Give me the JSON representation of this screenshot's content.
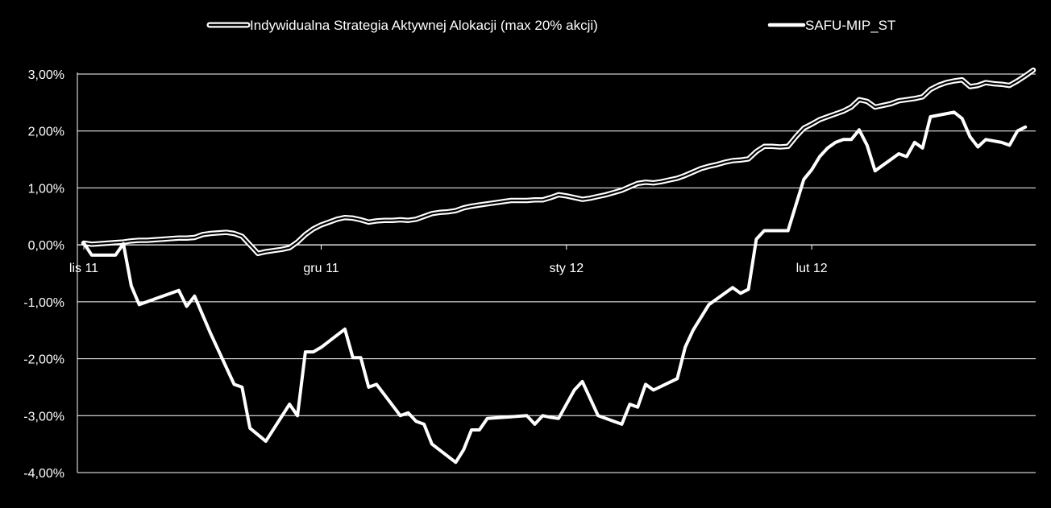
{
  "chart_data": {
    "type": "line",
    "legend_position": "top",
    "grid": true,
    "ylim": [
      -4.0,
      3.0
    ],
    "y_ticks": [
      3.0,
      2.0,
      1.0,
      0.0,
      -1.0,
      -2.0,
      -3.0,
      -4.0
    ],
    "y_tick_labels": [
      "3,00%",
      "2,00%",
      "1,00%",
      "0,00%",
      "-1,00%",
      "-2,00%",
      "-3,00%",
      "-4,00%"
    ],
    "x_range_days": [
      0,
      120
    ],
    "x_ticks": [
      {
        "label": "lis 11",
        "day": 0
      },
      {
        "label": "gru 11",
        "day": 30
      },
      {
        "label": "sty 12",
        "day": 61
      },
      {
        "label": "lut 12",
        "day": 92
      }
    ],
    "colors": {
      "background": "#000000",
      "lines": "#ffffff",
      "grid": "#ffffff"
    },
    "series": [
      {
        "name": "Indywidualna Strategia Aktywnej Alokacji (max 20% akcji)",
        "style": "double",
        "points": [
          [
            0,
            0.03
          ],
          [
            1,
            0.01
          ],
          [
            2,
            0.02
          ],
          [
            3,
            0.03
          ],
          [
            4,
            0.04
          ],
          [
            5,
            0.05
          ],
          [
            6,
            0.07
          ],
          [
            7,
            0.08
          ],
          [
            8,
            0.08
          ],
          [
            9,
            0.09
          ],
          [
            10,
            0.1
          ],
          [
            11,
            0.11
          ],
          [
            12,
            0.12
          ],
          [
            13,
            0.12
          ],
          [
            14,
            0.13
          ],
          [
            15,
            0.18
          ],
          [
            16,
            0.2
          ],
          [
            17,
            0.21
          ],
          [
            18,
            0.22
          ],
          [
            19,
            0.2
          ],
          [
            20,
            0.15
          ],
          [
            21,
            0.0
          ],
          [
            22,
            -0.15
          ],
          [
            23,
            -0.12
          ],
          [
            24,
            -0.1
          ],
          [
            25,
            -0.08
          ],
          [
            26,
            -0.05
          ],
          [
            27,
            0.05
          ],
          [
            28,
            0.18
          ],
          [
            29,
            0.28
          ],
          [
            30,
            0.35
          ],
          [
            31,
            0.4
          ],
          [
            32,
            0.45
          ],
          [
            33,
            0.48
          ],
          [
            34,
            0.47
          ],
          [
            35,
            0.44
          ],
          [
            36,
            0.4
          ],
          [
            37,
            0.42
          ],
          [
            38,
            0.43
          ],
          [
            39,
            0.43
          ],
          [
            40,
            0.44
          ],
          [
            41,
            0.43
          ],
          [
            42,
            0.45
          ],
          [
            43,
            0.5
          ],
          [
            44,
            0.55
          ],
          [
            45,
            0.57
          ],
          [
            46,
            0.58
          ],
          [
            47,
            0.6
          ],
          [
            48,
            0.65
          ],
          [
            49,
            0.68
          ],
          [
            50,
            0.7
          ],
          [
            51,
            0.72
          ],
          [
            52,
            0.74
          ],
          [
            53,
            0.76
          ],
          [
            54,
            0.78
          ],
          [
            55,
            0.78
          ],
          [
            56,
            0.78
          ],
          [
            57,
            0.79
          ],
          [
            58,
            0.79
          ],
          [
            59,
            0.83
          ],
          [
            60,
            0.88
          ],
          [
            61,
            0.86
          ],
          [
            62,
            0.83
          ],
          [
            63,
            0.8
          ],
          [
            64,
            0.82
          ],
          [
            65,
            0.85
          ],
          [
            66,
            0.88
          ],
          [
            67,
            0.92
          ],
          [
            68,
            0.96
          ],
          [
            69,
            1.02
          ],
          [
            70,
            1.08
          ],
          [
            71,
            1.1
          ],
          [
            72,
            1.09
          ],
          [
            73,
            1.11
          ],
          [
            74,
            1.14
          ],
          [
            75,
            1.17
          ],
          [
            76,
            1.22
          ],
          [
            77,
            1.28
          ],
          [
            78,
            1.34
          ],
          [
            79,
            1.38
          ],
          [
            80,
            1.41
          ],
          [
            81,
            1.45
          ],
          [
            82,
            1.48
          ],
          [
            83,
            1.49
          ],
          [
            84,
            1.51
          ],
          [
            85,
            1.64
          ],
          [
            86,
            1.73
          ],
          [
            87,
            1.73
          ],
          [
            88,
            1.72
          ],
          [
            89,
            1.73
          ],
          [
            90,
            1.9
          ],
          [
            91,
            2.05
          ],
          [
            92,
            2.12
          ],
          [
            93,
            2.2
          ],
          [
            94,
            2.25
          ],
          [
            95,
            2.3
          ],
          [
            96,
            2.35
          ],
          [
            97,
            2.42
          ],
          [
            98,
            2.55
          ],
          [
            99,
            2.52
          ],
          [
            100,
            2.42
          ],
          [
            101,
            2.45
          ],
          [
            102,
            2.48
          ],
          [
            103,
            2.53
          ],
          [
            104,
            2.55
          ],
          [
            105,
            2.57
          ],
          [
            106,
            2.6
          ],
          [
            107,
            2.73
          ],
          [
            108,
            2.8
          ],
          [
            109,
            2.85
          ],
          [
            110,
            2.88
          ],
          [
            111,
            2.9
          ],
          [
            112,
            2.78
          ],
          [
            113,
            2.8
          ],
          [
            114,
            2.85
          ],
          [
            115,
            2.83
          ],
          [
            116,
            2.82
          ],
          [
            117,
            2.8
          ],
          [
            118,
            2.88
          ],
          [
            119,
            2.97
          ],
          [
            120,
            3.07
          ]
        ]
      },
      {
        "name": "SAFU-MIP_ST",
        "style": "solid",
        "points": [
          [
            0,
            0.03
          ],
          [
            1,
            -0.18
          ],
          [
            4,
            -0.18
          ],
          [
            5,
            0.02
          ],
          [
            6,
            -0.72
          ],
          [
            7,
            -1.05
          ],
          [
            9,
            -0.95
          ],
          [
            12,
            -0.8
          ],
          [
            13,
            -1.08
          ],
          [
            14,
            -0.9
          ],
          [
            16,
            -1.55
          ],
          [
            19,
            -2.45
          ],
          [
            20,
            -2.5
          ],
          [
            21,
            -3.22
          ],
          [
            23,
            -3.45
          ],
          [
            26,
            -2.8
          ],
          [
            27,
            -3.0
          ],
          [
            28,
            -1.88
          ],
          [
            29,
            -1.88
          ],
          [
            30,
            -1.8
          ],
          [
            33,
            -1.48
          ],
          [
            34,
            -1.98
          ],
          [
            35,
            -1.98
          ],
          [
            36,
            -2.5
          ],
          [
            37,
            -2.45
          ],
          [
            40,
            -3.0
          ],
          [
            41,
            -2.95
          ],
          [
            42,
            -3.1
          ],
          [
            43,
            -3.15
          ],
          [
            44,
            -3.5
          ],
          [
            47,
            -3.82
          ],
          [
            48,
            -3.6
          ],
          [
            49,
            -3.25
          ],
          [
            50,
            -3.25
          ],
          [
            51,
            -3.05
          ],
          [
            56,
            -3.0
          ],
          [
            57,
            -3.15
          ],
          [
            58,
            -3.0
          ],
          [
            59,
            -3.03
          ],
          [
            60,
            -3.05
          ],
          [
            62,
            -2.55
          ],
          [
            63,
            -2.4
          ],
          [
            65,
            -3.0
          ],
          [
            68,
            -3.15
          ],
          [
            69,
            -2.8
          ],
          [
            70,
            -2.85
          ],
          [
            71,
            -2.45
          ],
          [
            72,
            -2.55
          ],
          [
            75,
            -2.35
          ],
          [
            76,
            -1.8
          ],
          [
            77,
            -1.5
          ],
          [
            79,
            -1.05
          ],
          [
            82,
            -0.75
          ],
          [
            83,
            -0.85
          ],
          [
            84,
            -0.78
          ],
          [
            85,
            0.1
          ],
          [
            86,
            0.25
          ],
          [
            89,
            0.25
          ],
          [
            91,
            1.15
          ],
          [
            92,
            1.32
          ],
          [
            93,
            1.55
          ],
          [
            94,
            1.7
          ],
          [
            95,
            1.8
          ],
          [
            96,
            1.85
          ],
          [
            97,
            1.85
          ],
          [
            98,
            2.02
          ],
          [
            99,
            1.75
          ],
          [
            100,
            1.3
          ],
          [
            101,
            1.4
          ],
          [
            102,
            1.5
          ],
          [
            103,
            1.6
          ],
          [
            104,
            1.55
          ],
          [
            105,
            1.8
          ],
          [
            106,
            1.7
          ],
          [
            107,
            2.25
          ],
          [
            110,
            2.33
          ],
          [
            111,
            2.22
          ],
          [
            112,
            1.9
          ],
          [
            113,
            1.72
          ],
          [
            114,
            1.85
          ],
          [
            116,
            1.8
          ],
          [
            117,
            1.75
          ],
          [
            118,
            2.0
          ],
          [
            119,
            2.07
          ]
        ]
      }
    ]
  }
}
